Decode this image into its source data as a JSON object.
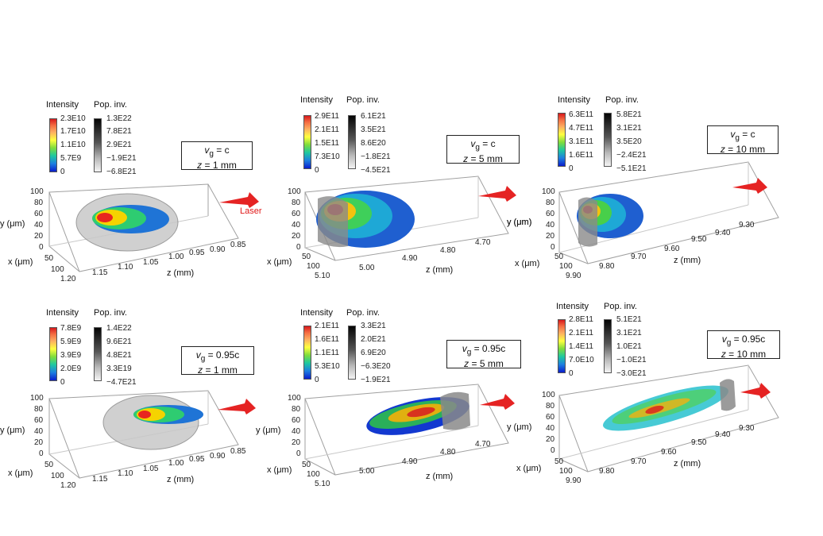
{
  "legend_labels": {
    "intensity": "Intensity",
    "pop_inv": "Pop. inv."
  },
  "axis_labels": {
    "y": "y (μm)",
    "x": "x (μm)",
    "z": "z (mm)"
  },
  "laser_label": "Laser",
  "colors": {
    "laser_arrow": "#e52323",
    "frame": "#9a9a9a"
  },
  "panels": [
    {
      "id": "p1",
      "vg": "= c",
      "zpos": "= 1 mm",
      "intensity_ticks": [
        "2.3E10",
        "1.7E10",
        "1.1E10",
        "5.7E9",
        "0"
      ],
      "pop_ticks": [
        "1.3E22",
        "7.8E21",
        "2.9E21",
        "−1.9E21",
        "−6.8E21"
      ],
      "y_ticks": [
        "100",
        "80",
        "60",
        "40",
        "20",
        "0"
      ],
      "x_ticks": [
        "50",
        "100"
      ],
      "z_ticks": [
        "1.20",
        "1.15",
        "1.10",
        "1.05",
        "1.00",
        "0.95",
        "0.90",
        "0.85"
      ],
      "show_laser_label": true
    },
    {
      "id": "p2",
      "vg": "= c",
      "zpos": "= 5 mm",
      "intensity_ticks": [
        "2.9E11",
        "2.1E11",
        "1.5E11",
        "7.3E10",
        "0"
      ],
      "pop_ticks": [
        "6.1E21",
        "3.5E21",
        "8.6E20",
        "−1.8E21",
        "−4.5E21"
      ],
      "y_ticks": [
        "100",
        "80",
        "60",
        "40",
        "20",
        "0"
      ],
      "x_ticks": [
        "50",
        "100"
      ],
      "z_ticks": [
        "5.10",
        "5.00",
        "4.90",
        "4.80",
        "4.70"
      ]
    },
    {
      "id": "p3",
      "vg": "= c",
      "zpos": "= 10 mm",
      "intensity_ticks": [
        "6.3E11",
        "4.7E11",
        "3.1E11",
        "1.6E11",
        "0"
      ],
      "pop_ticks": [
        "5.8E21",
        "3.1E21",
        "3.5E20",
        "−2.4E21",
        "−5.1E21"
      ],
      "y_ticks": [
        "100",
        "80",
        "60",
        "40",
        "20",
        "0"
      ],
      "x_ticks": [
        "50",
        "100"
      ],
      "z_ticks": [
        "9.90",
        "9.80",
        "9.70",
        "9.60",
        "9.50",
        "9.40",
        "9.30"
      ]
    },
    {
      "id": "p4",
      "vg": "= 0.95c",
      "zpos": "= 1 mm",
      "intensity_ticks": [
        "7.8E9",
        "5.9E9",
        "3.9E9",
        "2.0E9",
        "0"
      ],
      "pop_ticks": [
        "1.4E22",
        "9.6E21",
        "4.8E21",
        "3.3E19",
        "−4.7E21"
      ],
      "y_ticks": [
        "100",
        "80",
        "60",
        "40",
        "20",
        "0"
      ],
      "x_ticks": [
        "50",
        "100"
      ],
      "z_ticks": [
        "1.20",
        "1.15",
        "1.10",
        "1.05",
        "1.00",
        "0.95",
        "0.90",
        "0.85"
      ]
    },
    {
      "id": "p5",
      "vg": "= 0.95c",
      "zpos": "= 5 mm",
      "intensity_ticks": [
        "2.1E11",
        "1.6E11",
        "1.1E11",
        "5.3E10",
        "0"
      ],
      "pop_ticks": [
        "3.3E21",
        "2.0E21",
        "6.9E20",
        "−6.3E20",
        "−1.9E21"
      ],
      "y_ticks": [
        "100",
        "80",
        "60",
        "40",
        "20",
        "0"
      ],
      "x_ticks": [
        "50",
        "100"
      ],
      "z_ticks": [
        "5.10",
        "5.00",
        "4.90",
        "4.80",
        "4.70"
      ]
    },
    {
      "id": "p6",
      "vg": "= 0.95c",
      "zpos": "= 10 mm",
      "intensity_ticks": [
        "2.8E11",
        "2.1E11",
        "1.4E11",
        "7.0E10",
        "0"
      ],
      "pop_ticks": [
        "5.1E21",
        "3.1E21",
        "1.0E21",
        "−1.0E21",
        "−3.0E21"
      ],
      "y_ticks": [
        "100",
        "80",
        "60",
        "40",
        "20",
        "0"
      ],
      "x_ticks": [
        "50",
        "100"
      ],
      "z_ticks": [
        "9.90",
        "9.80",
        "9.70",
        "9.60",
        "9.50",
        "9.40",
        "9.30"
      ]
    }
  ]
}
